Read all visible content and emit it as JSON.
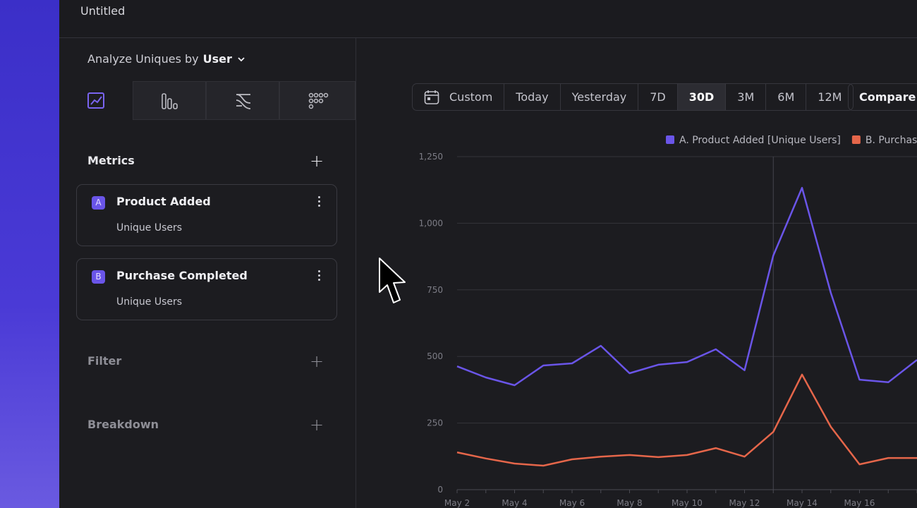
{
  "header": {
    "title": "Untitled"
  },
  "sidebar": {
    "analyze_label": "Analyze Uniques by",
    "analyze_value": "User",
    "metrics_title": "Metrics",
    "metrics": [
      {
        "letter": "A",
        "name": "Product Added",
        "measure": "Unique Users"
      },
      {
        "letter": "B",
        "name": "Purchase Completed",
        "measure": "Unique Users"
      }
    ],
    "filter_title": "Filter",
    "breakdown_title": "Breakdown"
  },
  "date_range": {
    "options": [
      "Custom",
      "Today",
      "Yesterday",
      "7D",
      "30D",
      "3M",
      "6M",
      "12M"
    ],
    "selected_index": 4,
    "compare": "Compare"
  },
  "chart_data": {
    "type": "line",
    "categories": [
      "May 2",
      null,
      "May 4",
      null,
      "May 6",
      null,
      "May 8",
      null,
      "May 10",
      null,
      "May 12",
      null,
      "May 14",
      null,
      "May 16",
      null,
      null
    ],
    "series": [
      {
        "name": "A. Product Added [Unique Users]",
        "color": "#6a55e8",
        "values": [
          463,
          421,
          392,
          466,
          474,
          540,
          437,
          469,
          479,
          527,
          448,
          879,
          1133,
          739,
          413,
          403,
          487
        ]
      },
      {
        "name": "B. Purchase Completed [Unique Users]",
        "color": "#e5664a",
        "values": [
          140,
          117,
          98,
          90,
          114,
          124,
          130,
          122,
          130,
          156,
          124,
          217,
          432,
          236,
          95,
          119,
          119
        ]
      }
    ],
    "ylim": [
      0,
      1250
    ],
    "yticks": [
      0,
      250,
      500,
      750,
      {
        "value": 1000,
        "label": "1,000"
      },
      {
        "value": 1250,
        "label": "1,250"
      }
    ],
    "grid": true,
    "legend": "top"
  }
}
